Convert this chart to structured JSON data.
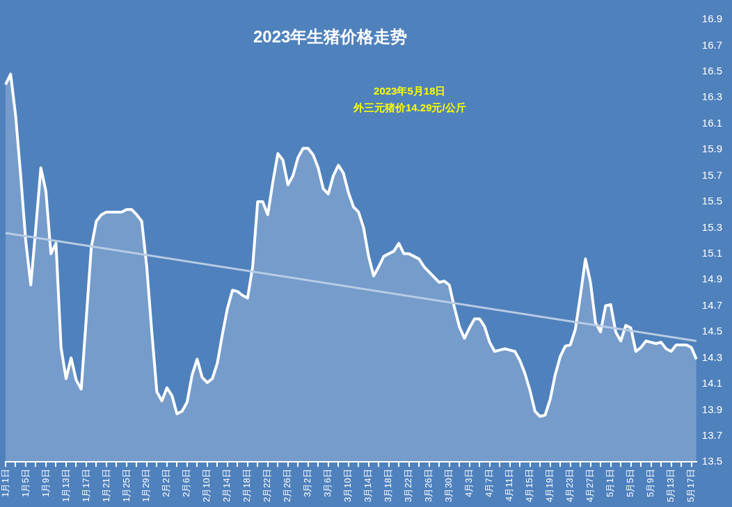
{
  "chart_data": {
    "type": "area",
    "title": "2023年生猪价格走势",
    "annotations": [
      "2023年5月18日",
      "外三元猪价14.29元/公斤"
    ],
    "categories": [
      "1月1日",
      null,
      null,
      null,
      "1月5日",
      null,
      null,
      null,
      "1月9日",
      null,
      null,
      null,
      "1月13日",
      null,
      null,
      null,
      "1月17日",
      null,
      null,
      null,
      "1月21日",
      null,
      null,
      null,
      "1月25日",
      null,
      null,
      null,
      "1月29日",
      null,
      null,
      null,
      "2月2日",
      null,
      null,
      null,
      "2月6日",
      null,
      null,
      null,
      "2月10日",
      null,
      null,
      null,
      "2月14日",
      null,
      null,
      null,
      "2月18日",
      null,
      null,
      null,
      "2月22日",
      null,
      null,
      null,
      "2月26日",
      null,
      null,
      null,
      "3月2日",
      null,
      null,
      null,
      "3月6日",
      null,
      null,
      null,
      "3月10日",
      null,
      null,
      null,
      "3月14日",
      null,
      null,
      null,
      "3月18日",
      null,
      null,
      null,
      "3月22日",
      null,
      null,
      null,
      "3月26日",
      null,
      null,
      null,
      "3月30日",
      null,
      null,
      null,
      "4月3日",
      null,
      null,
      null,
      "4月7日",
      null,
      null,
      null,
      "4月11日",
      null,
      null,
      null,
      "4月15日",
      null,
      null,
      null,
      "4月19日",
      null,
      null,
      null,
      "4月23日",
      null,
      null,
      null,
      "4月27日",
      null,
      null,
      null,
      "5月1日",
      null,
      null,
      null,
      "5月5日",
      null,
      null,
      null,
      "5月9日",
      null,
      null,
      null,
      "5月13日",
      null,
      null,
      null,
      "5月17日",
      null
    ],
    "series": [
      {
        "color": "#ffffff",
        "values": [
          16.4,
          16.48,
          16.16,
          15.7,
          15.2,
          14.86,
          15.3,
          15.76,
          15.58,
          15.1,
          15.18,
          14.38,
          14.14,
          14.3,
          14.13,
          14.06,
          14.6,
          15.15,
          15.35,
          15.4,
          15.42,
          15.42,
          15.42,
          15.42,
          15.44,
          15.44,
          15.4,
          15.35,
          15.0,
          14.5,
          14.04,
          13.97,
          14.07,
          14.01,
          13.87,
          13.89,
          13.96,
          14.17,
          14.29,
          14.15,
          14.11,
          14.14,
          14.26,
          14.48,
          14.68,
          14.82,
          14.81,
          14.78,
          14.76,
          15.0,
          15.5,
          15.5,
          15.4,
          15.65,
          15.87,
          15.82,
          15.63,
          15.7,
          15.84,
          15.91,
          15.91,
          15.86,
          15.76,
          15.6,
          15.56,
          15.7,
          15.78,
          15.72,
          15.57,
          15.46,
          15.42,
          15.3,
          15.08,
          14.93,
          15.0,
          15.08,
          15.1,
          15.12,
          15.18,
          15.1,
          15.1,
          15.08,
          15.06,
          15.0,
          14.96,
          14.92,
          14.88,
          14.89,
          14.86,
          14.69,
          14.54,
          14.45,
          14.53,
          14.6,
          14.6,
          14.54,
          14.42,
          14.35,
          14.36,
          14.37,
          14.36,
          14.35,
          14.28,
          14.18,
          14.05,
          13.89,
          13.85,
          13.86,
          13.98,
          14.17,
          14.31,
          14.39,
          14.4,
          14.52,
          14.78,
          15.06,
          14.88,
          14.57,
          14.5,
          14.7,
          14.71,
          14.5,
          14.43,
          14.55,
          14.53,
          14.35,
          14.38,
          14.43,
          14.42,
          14.41,
          14.42,
          14.37,
          14.35,
          14.4,
          14.4,
          14.4,
          14.38,
          14.29
        ]
      },
      {
        "type": "line",
        "color": "#b8cce4",
        "values": [
          15.26,
          null,
          null,
          null,
          null,
          null,
          null,
          null,
          null,
          null,
          null,
          null,
          null,
          null,
          null,
          null,
          null,
          null,
          null,
          null,
          null,
          null,
          null,
          null,
          null,
          null,
          null,
          null,
          null,
          null,
          null,
          null,
          null,
          null,
          null,
          null,
          null,
          null,
          null,
          null,
          null,
          null,
          null,
          null,
          null,
          null,
          null,
          null,
          null,
          null,
          null,
          null,
          null,
          null,
          null,
          null,
          null,
          null,
          null,
          null,
          null,
          null,
          null,
          null,
          null,
          null,
          null,
          null,
          null,
          null,
          null,
          null,
          null,
          null,
          null,
          null,
          null,
          null,
          null,
          null,
          null,
          null,
          null,
          null,
          null,
          null,
          null,
          null,
          null,
          null,
          null,
          null,
          null,
          null,
          null,
          null,
          null,
          null,
          null,
          null,
          null,
          null,
          null,
          null,
          null,
          null,
          null,
          null,
          null,
          null,
          null,
          null,
          null,
          null,
          null,
          null,
          null,
          null,
          null,
          null,
          null,
          null,
          null,
          null,
          null,
          null,
          null,
          null,
          null,
          null,
          null,
          null,
          null,
          null,
          null,
          null,
          null,
          14.43
        ]
      }
    ],
    "ylim": [
      13.5,
      16.9
    ],
    "yticks": [
      13.5,
      13.7,
      13.9,
      14.1,
      14.3,
      14.5,
      14.7,
      14.9,
      15.1,
      15.3,
      15.5,
      15.7,
      15.9,
      16.1,
      16.3,
      16.5,
      16.7,
      16.9
    ],
    "grid": false,
    "marker": "none"
  }
}
